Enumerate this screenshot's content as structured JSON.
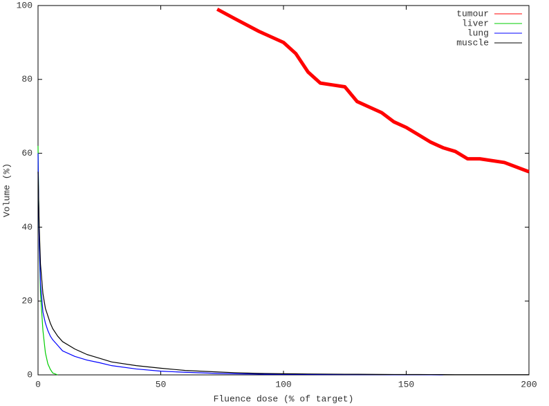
{
  "chart_data": {
    "type": "line",
    "xlabel": "Fluence dose (% of target)",
    "ylabel": "Volume (%)",
    "x": [
      0,
      0.5,
      1,
      2,
      3,
      4,
      5,
      6,
      8,
      10,
      15,
      20,
      25,
      30,
      40,
      50,
      60,
      73,
      80,
      90,
      100,
      105,
      110,
      115,
      120,
      125,
      130,
      135,
      140,
      145,
      150,
      155,
      160,
      165,
      170,
      175,
      180,
      190,
      200
    ],
    "series": [
      {
        "name": "tumour",
        "color": "#ff0000",
        "values": [
          null,
          null,
          null,
          null,
          null,
          null,
          null,
          null,
          null,
          null,
          null,
          null,
          null,
          null,
          null,
          null,
          null,
          99,
          96.5,
          93,
          90,
          87,
          82,
          79,
          78.5,
          78,
          74,
          72.5,
          71,
          68.5,
          67,
          65,
          63,
          61.5,
          60.5,
          58.5,
          58.5,
          57.5,
          55
        ]
      },
      {
        "name": "liver",
        "color": "#00cc00",
        "values": [
          62,
          35,
          22,
          12,
          6,
          3,
          1.5,
          0.5,
          0,
          null,
          null,
          null,
          null,
          null,
          null,
          null,
          null,
          null,
          null,
          null,
          null,
          null,
          null,
          null,
          null,
          null,
          null,
          null,
          null,
          null,
          null,
          null,
          null,
          null,
          null,
          null,
          null,
          null,
          null
        ]
      },
      {
        "name": "lung",
        "color": "#0000ff",
        "values": [
          60,
          35,
          25,
          17,
          14,
          12,
          10.5,
          9.5,
          8,
          6.5,
          5,
          4,
          3.3,
          2.5,
          1.6,
          1,
          0.7,
          0.4,
          0.3,
          0.2,
          0.15,
          0.13,
          0.12,
          0.1,
          0.09,
          0.08,
          0.07,
          0.06,
          0.06,
          0.05,
          0.05,
          0.04,
          0.02,
          0,
          null,
          null,
          null,
          null,
          null
        ]
      },
      {
        "name": "muscle",
        "color": "#000000",
        "values": [
          55,
          40,
          30,
          22,
          18,
          16,
          14,
          12.5,
          10.5,
          9,
          7,
          5.5,
          4.5,
          3.5,
          2.5,
          1.8,
          1.2,
          0.8,
          0.6,
          0.4,
          0.3,
          0.28,
          0.25,
          0.22,
          0.2,
          0.18,
          0.16,
          0.14,
          0.12,
          0.11,
          0.1,
          0.09,
          0.08,
          0.07,
          0.06,
          0.06,
          0.05,
          0.05,
          0.05
        ]
      }
    ],
    "xlim": [
      0,
      200
    ],
    "xticks": [
      0,
      50,
      100,
      150,
      200
    ],
    "ylim": [
      0,
      100
    ],
    "yticks": [
      0,
      20,
      40,
      60,
      80,
      100
    ],
    "legend": "top-right"
  }
}
